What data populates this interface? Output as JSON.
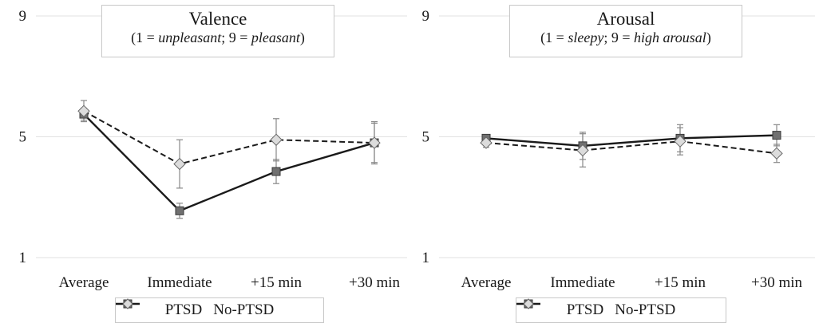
{
  "legend": {
    "series1": "PTSD",
    "series2": "No-PTSD"
  },
  "chart_data": [
    {
      "type": "line",
      "title": "Valence",
      "subtitle_parts": [
        "(1 = ",
        "unpleasant",
        "; 9 = ",
        "pleasant",
        ")"
      ],
      "categories": [
        "Average",
        "Immediate",
        "+15 min",
        "+30 min"
      ],
      "yticks": [
        "9",
        "5",
        "1"
      ],
      "ylim": [
        1,
        9
      ],
      "grid": true,
      "series": [
        {
          "name": "PTSD",
          "values": [
            5.75,
            2.55,
            3.85,
            4.8
          ],
          "errors": [
            0.2,
            0.25,
            0.4,
            0.65
          ],
          "line": "solid",
          "marker": "square"
        },
        {
          "name": "No-PTSD",
          "values": [
            5.85,
            4.1,
            4.9,
            4.8
          ],
          "errors": [
            0.35,
            0.8,
            0.7,
            0.7
          ],
          "line": "dashed",
          "marker": "diamond"
        }
      ]
    },
    {
      "type": "line",
      "title": "Arousal",
      "subtitle_parts": [
        "(1 = ",
        "sleepy",
        "; 9 = ",
        "high arousal",
        ")"
      ],
      "categories": [
        "Average",
        "Immediate",
        "+15 min",
        "+30 min"
      ],
      "yticks": [
        "9",
        "5",
        "1"
      ],
      "ylim": [
        1,
        9
      ],
      "grid": true,
      "series": [
        {
          "name": "PTSD",
          "values": [
            4.95,
            4.7,
            4.95,
            5.05
          ],
          "errors": [
            0.1,
            0.45,
            0.45,
            0.35
          ],
          "line": "solid",
          "marker": "square"
        },
        {
          "name": "No-PTSD",
          "values": [
            4.8,
            4.55,
            4.85,
            4.45
          ],
          "errors": [
            0.15,
            0.55,
            0.45,
            0.3
          ],
          "line": "dashed",
          "marker": "diamond"
        }
      ]
    }
  ]
}
